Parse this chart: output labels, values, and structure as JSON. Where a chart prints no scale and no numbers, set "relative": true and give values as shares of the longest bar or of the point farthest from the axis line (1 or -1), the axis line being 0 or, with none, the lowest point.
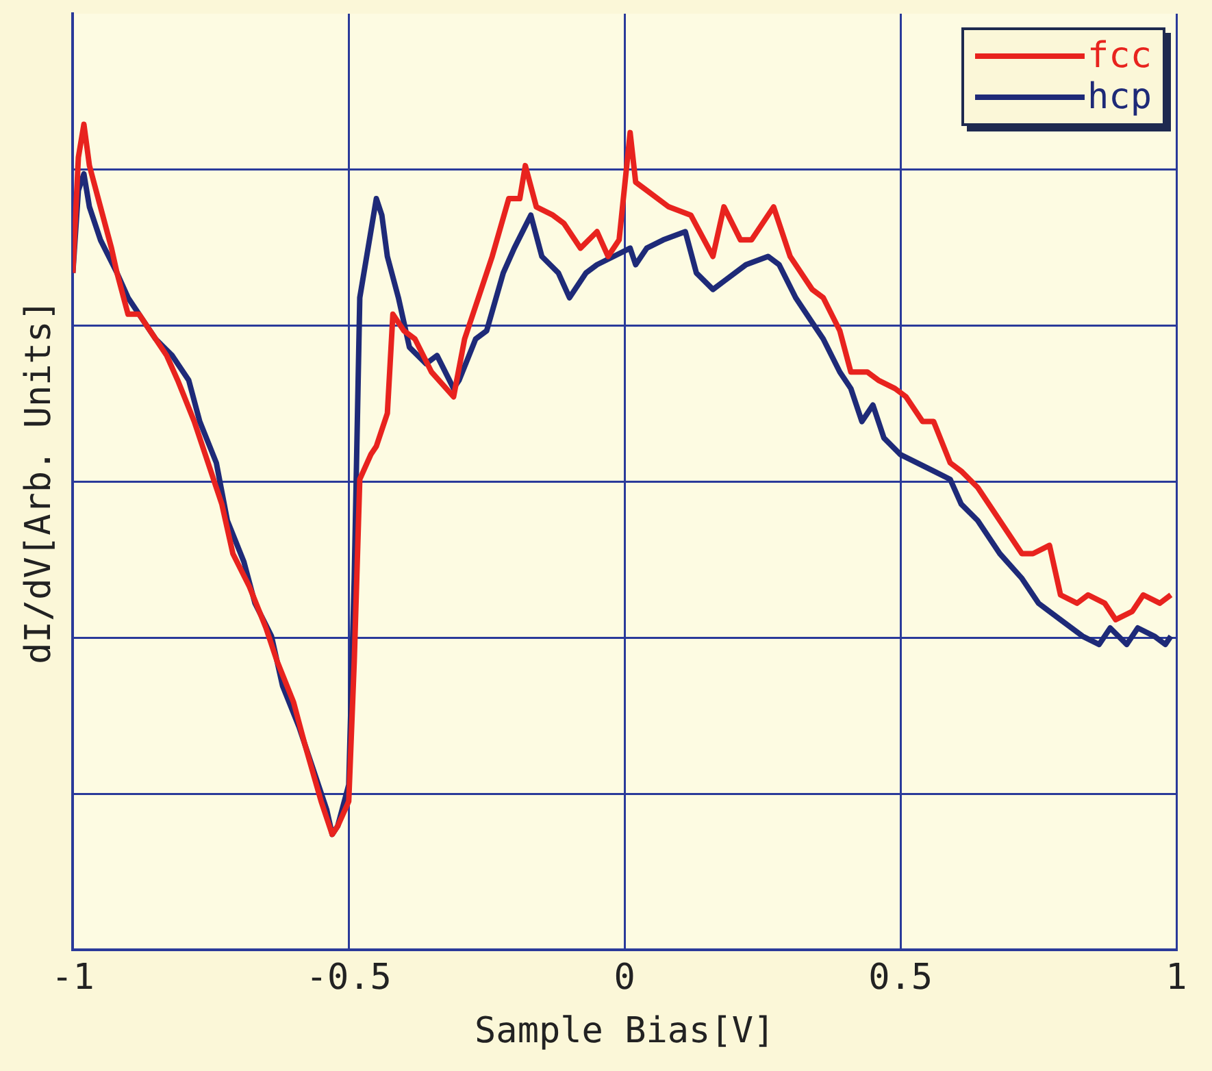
{
  "chart_data": {
    "type": "line",
    "xlabel": "Sample Bias[V]",
    "ylabel": "dI/dV[Arb. Units]",
    "relative": true,
    "xlim": [
      -1,
      1
    ],
    "xticks": [
      -1,
      -0.5,
      0,
      0.5,
      1
    ],
    "grid": true,
    "legend": "top right",
    "marker": "none",
    "line_style": "solid",
    "series": [
      {
        "name": "fcc",
        "color": "#e8231e",
        "x": [
          -1.0,
          -0.99,
          -0.98,
          -0.97,
          -0.95,
          -0.93,
          -0.92,
          -0.9,
          -0.88,
          -0.86,
          -0.83,
          -0.81,
          -0.78,
          -0.76,
          -0.73,
          -0.71,
          -0.68,
          -0.65,
          -0.63,
          -0.6,
          -0.58,
          -0.55,
          -0.53,
          -0.52,
          -0.5,
          -0.49,
          -0.48,
          -0.46,
          -0.45,
          -0.43,
          -0.42,
          -0.4,
          -0.38,
          -0.35,
          -0.31,
          -0.29,
          -0.26,
          -0.24,
          -0.21,
          -0.19,
          -0.18,
          -0.16,
          -0.13,
          -0.11,
          -0.08,
          -0.05,
          -0.03,
          -0.01,
          0.01,
          0.02,
          0.04,
          0.08,
          0.12,
          0.16,
          0.18,
          0.21,
          0.23,
          0.27,
          0.3,
          0.34,
          0.36,
          0.39,
          0.41,
          0.44,
          0.46,
          0.49,
          0.51,
          0.54,
          0.56,
          0.59,
          0.61,
          0.64,
          0.68,
          0.72,
          0.74,
          0.77,
          0.79,
          0.82,
          0.84,
          0.87,
          0.89,
          0.92,
          0.94,
          0.97,
          0.99
        ],
        "values": [
          0.82,
          0.96,
          1.0,
          0.95,
          0.9,
          0.85,
          0.82,
          0.77,
          0.77,
          0.75,
          0.72,
          0.69,
          0.64,
          0.6,
          0.54,
          0.48,
          0.44,
          0.39,
          0.35,
          0.3,
          0.25,
          0.18,
          0.14,
          0.15,
          0.18,
          0.35,
          0.57,
          0.6,
          0.61,
          0.65,
          0.77,
          0.75,
          0.74,
          0.7,
          0.67,
          0.74,
          0.8,
          0.84,
          0.91,
          0.91,
          0.95,
          0.9,
          0.89,
          0.88,
          0.85,
          0.87,
          0.84,
          0.86,
          0.99,
          0.93,
          0.92,
          0.9,
          0.89,
          0.84,
          0.9,
          0.86,
          0.86,
          0.9,
          0.84,
          0.8,
          0.79,
          0.75,
          0.7,
          0.7,
          0.69,
          0.68,
          0.67,
          0.64,
          0.64,
          0.59,
          0.58,
          0.56,
          0.52,
          0.48,
          0.48,
          0.49,
          0.43,
          0.42,
          0.43,
          0.42,
          0.4,
          0.41,
          0.43,
          0.42,
          0.43
        ]
      },
      {
        "name": "hcp",
        "color": "#1e2a78",
        "x": [
          -1.0,
          -0.99,
          -0.98,
          -0.97,
          -0.95,
          -0.92,
          -0.9,
          -0.87,
          -0.85,
          -0.82,
          -0.79,
          -0.77,
          -0.74,
          -0.72,
          -0.69,
          -0.67,
          -0.64,
          -0.62,
          -0.59,
          -0.57,
          -0.54,
          -0.53,
          -0.52,
          -0.5,
          -0.49,
          -0.48,
          -0.46,
          -0.45,
          -0.44,
          -0.43,
          -0.41,
          -0.39,
          -0.36,
          -0.34,
          -0.31,
          -0.3,
          -0.27,
          -0.25,
          -0.22,
          -0.2,
          -0.17,
          -0.15,
          -0.12,
          -0.1,
          -0.07,
          -0.05,
          -0.02,
          0.01,
          0.02,
          0.04,
          0.07,
          0.11,
          0.13,
          0.16,
          0.18,
          0.22,
          0.26,
          0.28,
          0.31,
          0.34,
          0.36,
          0.39,
          0.41,
          0.43,
          0.45,
          0.47,
          0.5,
          0.53,
          0.56,
          0.59,
          0.61,
          0.64,
          0.68,
          0.72,
          0.75,
          0.79,
          0.83,
          0.86,
          0.88,
          0.91,
          0.93,
          0.96,
          0.98,
          0.99
        ],
        "values": [
          0.82,
          0.92,
          0.94,
          0.9,
          0.86,
          0.82,
          0.79,
          0.76,
          0.74,
          0.72,
          0.69,
          0.64,
          0.59,
          0.52,
          0.47,
          0.42,
          0.38,
          0.32,
          0.27,
          0.23,
          0.17,
          0.14,
          0.15,
          0.2,
          0.45,
          0.79,
          0.87,
          0.91,
          0.89,
          0.84,
          0.79,
          0.73,
          0.71,
          0.72,
          0.68,
          0.69,
          0.74,
          0.75,
          0.82,
          0.85,
          0.89,
          0.84,
          0.82,
          0.79,
          0.82,
          0.83,
          0.84,
          0.85,
          0.83,
          0.85,
          0.86,
          0.87,
          0.82,
          0.8,
          0.81,
          0.83,
          0.84,
          0.83,
          0.79,
          0.76,
          0.74,
          0.7,
          0.68,
          0.64,
          0.66,
          0.62,
          0.6,
          0.59,
          0.58,
          0.57,
          0.54,
          0.52,
          0.48,
          0.45,
          0.42,
          0.4,
          0.38,
          0.37,
          0.39,
          0.37,
          0.39,
          0.38,
          0.37,
          0.38
        ]
      }
    ]
  }
}
